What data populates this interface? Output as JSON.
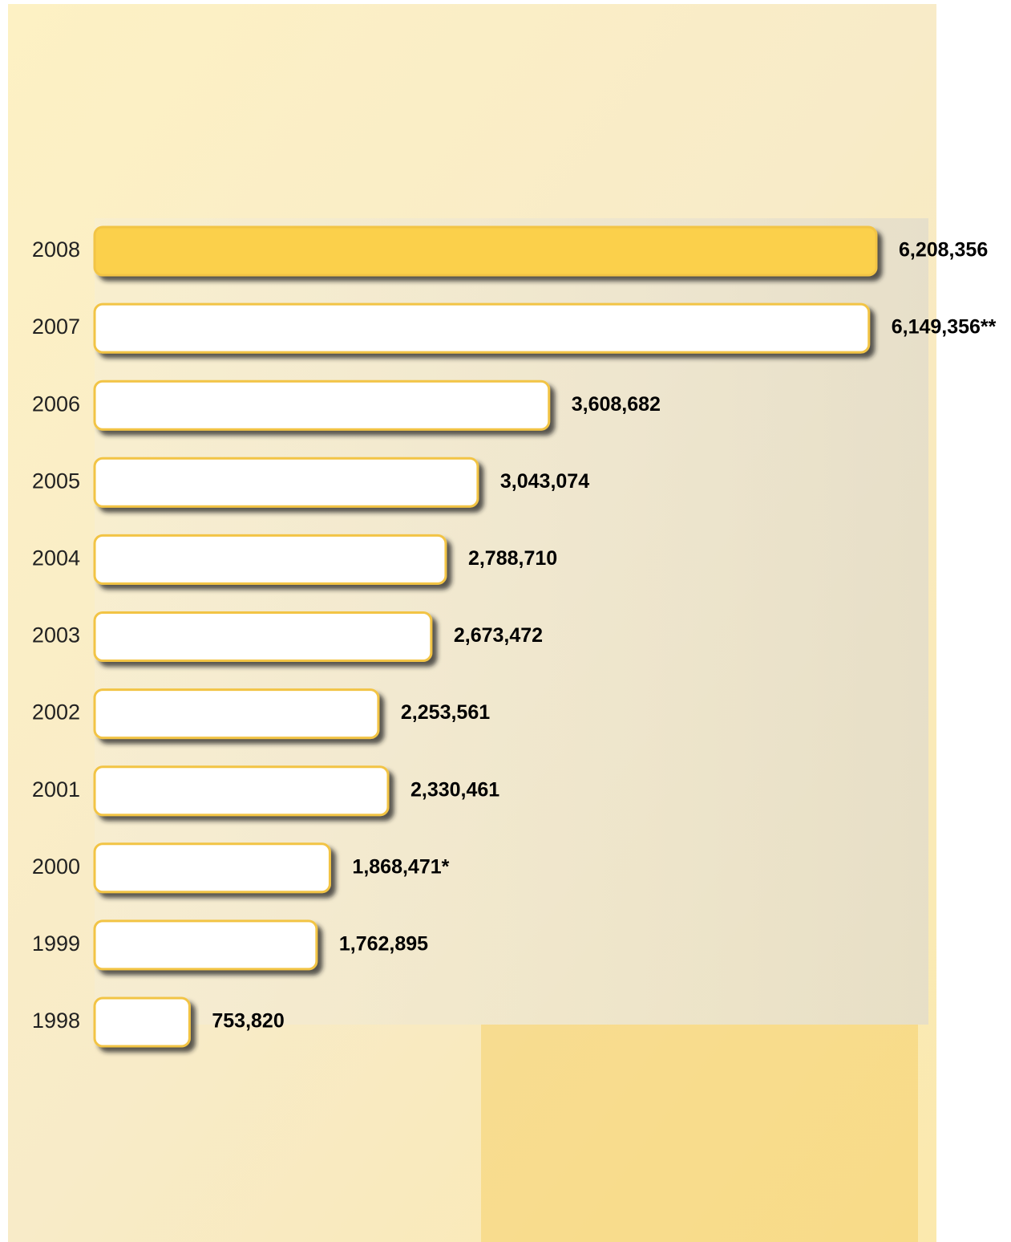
{
  "chart_data": {
    "type": "hbar",
    "categories": [
      "2008",
      "2007",
      "2006",
      "2005",
      "2004",
      "2003",
      "2002",
      "2001",
      "2000",
      "1999",
      "1998"
    ],
    "values": [
      6208356,
      6149356,
      3608682,
      3043074,
      2788710,
      2673472,
      2253561,
      2330461,
      1868471,
      1762895,
      753820
    ],
    "value_labels": [
      "6,208,356",
      "6,149,356**",
      "3,608,682",
      "3,043,074",
      "2,788,710",
      "2,673,472",
      "2,253,561",
      "2,330,461",
      "1,868,471*",
      "1,762,895",
      "753,820"
    ],
    "colors": [
      "#fbd04b",
      "#ffffff",
      "#ffffff",
      "#ffffff",
      "#ffffff",
      "#ffffff",
      "#ffffff",
      "#ffffff",
      "#ffffff",
      "#ffffff",
      "#ffffff"
    ],
    "border_color": "#f2c445"
  }
}
